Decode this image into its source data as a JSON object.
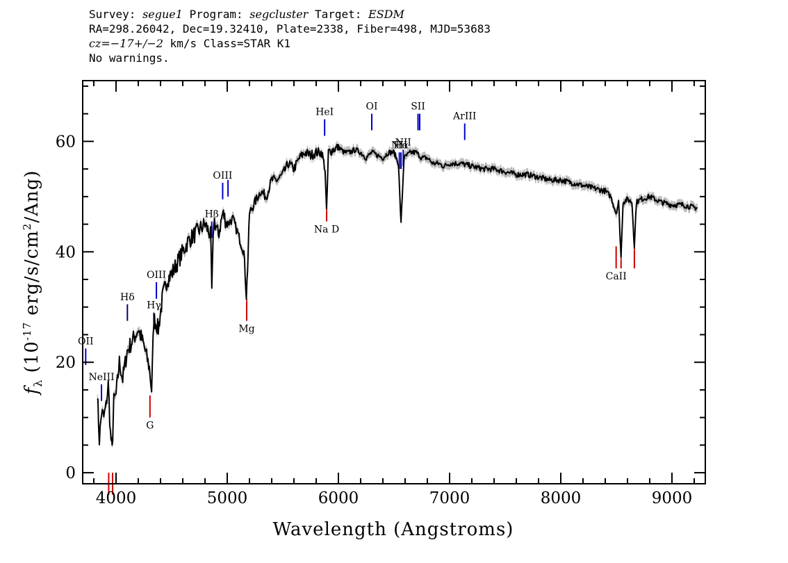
{
  "header": {
    "line1": {
      "survey_label": "Survey: ",
      "survey": "segue1",
      "program_label": " Program: ",
      "program": "segcluster",
      "target_label": " Target: ",
      "target": "ESDM"
    },
    "line2": "RA=298.26042, Dec=19.32410, Plate=2338, Fiber=498, MJD=53683",
    "line3": {
      "cz_label": "cz=",
      "cz_value": "−17+/−2",
      "rest": " km/s Class=STAR K1"
    },
    "line4": "No warnings."
  },
  "chart_data": {
    "type": "line",
    "title": "",
    "xlabel": "Wavelength (Angstroms)",
    "ylabel": "f_λ (10^-17 erg/s/cm^2/Ang)",
    "xlim": [
      3700,
      9300
    ],
    "ylim": [
      -2,
      71
    ],
    "xticks": [
      4000,
      5000,
      6000,
      7000,
      8000,
      9000
    ],
    "xtick_labels": [
      "4000",
      "5000",
      "6000",
      "7000",
      "8000",
      "9000"
    ],
    "yticks": [
      0,
      20,
      40,
      60
    ],
    "ytick_labels": [
      "0",
      "20",
      "40",
      "60"
    ],
    "grid": false,
    "series": [
      {
        "color": "#000000",
        "error_band_color": "#bbbbbb",
        "x": [
          3830,
          3850,
          3870,
          3890,
          3910,
          3930,
          3950,
          3965,
          3980,
          4000,
          4030,
          4060,
          4100,
          4150,
          4200,
          4250,
          4300,
          4320,
          4340,
          4380,
          4420,
          4460,
          4500,
          4550,
          4600,
          4650,
          4700,
          4750,
          4800,
          4850,
          4861,
          4880,
          4920,
          4960,
          5000,
          5050,
          5100,
          5150,
          5172,
          5183,
          5200,
          5250,
          5300,
          5350,
          5400,
          5450,
          5500,
          5550,
          5600,
          5650,
          5700,
          5750,
          5800,
          5850,
          5880,
          5893,
          5910,
          5950,
          6000,
          6050,
          6100,
          6150,
          6200,
          6250,
          6300,
          6350,
          6400,
          6450,
          6500,
          6540,
          6563,
          6590,
          6650,
          6700,
          6750,
          6800,
          6850,
          6900,
          6950,
          7000,
          7100,
          7200,
          7300,
          7400,
          7500,
          7600,
          7700,
          7800,
          7900,
          8000,
          8100,
          8200,
          8300,
          8400,
          8450,
          8498,
          8520,
          8542,
          8560,
          8600,
          8640,
          8662,
          8680,
          8720,
          8800,
          8900,
          9000,
          9100,
          9200,
          9230
        ],
        "y": [
          15,
          6,
          11,
          10,
          12,
          16,
          7,
          4,
          13,
          14,
          20,
          17,
          22,
          24,
          26,
          23,
          19,
          15,
          28,
          26,
          32,
          35,
          36,
          38,
          40,
          42,
          43,
          44,
          45,
          43,
          33,
          46,
          43,
          47,
          45,
          46,
          43,
          40,
          32,
          37,
          47,
          49,
          51,
          50,
          53,
          53,
          54,
          56,
          55,
          57,
          58,
          57.5,
          58,
          58,
          55,
          47,
          58,
          58.5,
          59,
          58,
          58,
          58.5,
          58,
          57,
          58,
          57.5,
          57,
          58,
          58,
          56,
          45,
          57,
          58,
          58,
          57,
          57,
          56,
          56,
          55.5,
          56,
          56,
          55.5,
          55,
          55,
          54.5,
          54,
          54,
          53.5,
          53,
          53,
          52.5,
          52,
          51.5,
          51,
          50,
          47,
          49,
          39,
          49,
          49.5,
          49,
          41,
          49,
          49.5,
          50,
          49,
          48.5,
          48.5,
          48,
          48
        ]
      }
    ],
    "line_markers_top": [
      {
        "label": "OII",
        "x": 3727,
        "color": "#0000cc"
      },
      {
        "label": "NeIII",
        "x": 3869,
        "color": "#0000cc"
      },
      {
        "label": "Hδ",
        "x": 4102,
        "color": "#000080"
      },
      {
        "label": "Hγ",
        "x": 4340,
        "color": "#000080"
      },
      {
        "label": "OIII",
        "x": 4363,
        "color": "#0000cc"
      },
      {
        "label": "Hβ",
        "x": 4861,
        "color": "#0000cc"
      },
      {
        "label": "OIII",
        "x": 4959,
        "color": "#0000cc"
      },
      {
        "label": "",
        "x": 5007,
        "color": "#0000cc"
      },
      {
        "label": "HeI",
        "x": 5876,
        "color": "#0000cc"
      },
      {
        "label": "OI",
        "x": 6300,
        "color": "#0000cc"
      },
      {
        "label": "NII",
        "x": 6548,
        "color": "#0000cc"
      },
      {
        "label": "Hα",
        "x": 6563,
        "color": "#000080"
      },
      {
        "label": "NII",
        "x": 6583,
        "color": "#0000cc"
      },
      {
        "label": "SII",
        "x": 6716,
        "color": "#0000cc"
      },
      {
        "label": "",
        "x": 6731,
        "color": "#0000cc"
      },
      {
        "label": "ArIII",
        "x": 7136,
        "color": "#0000cc"
      }
    ],
    "line_markers_bottom": [
      {
        "label": "",
        "x": 3934,
        "color": "#cc0000"
      },
      {
        "label": "",
        "x": 3969,
        "color": "#cc0000"
      },
      {
        "label": "G",
        "x": 4305,
        "color": "#cc0000"
      },
      {
        "label": "Mg",
        "x": 5175,
        "color": "#cc0000"
      },
      {
        "label": "Na D",
        "x": 5894,
        "color": "#cc0000"
      },
      {
        "label": "CaII",
        "x": 8498,
        "color": "#cc0000"
      },
      {
        "label": "",
        "x": 8542,
        "color": "#cc0000"
      },
      {
        "label": "",
        "x": 8662,
        "color": "#cc0000"
      }
    ]
  }
}
